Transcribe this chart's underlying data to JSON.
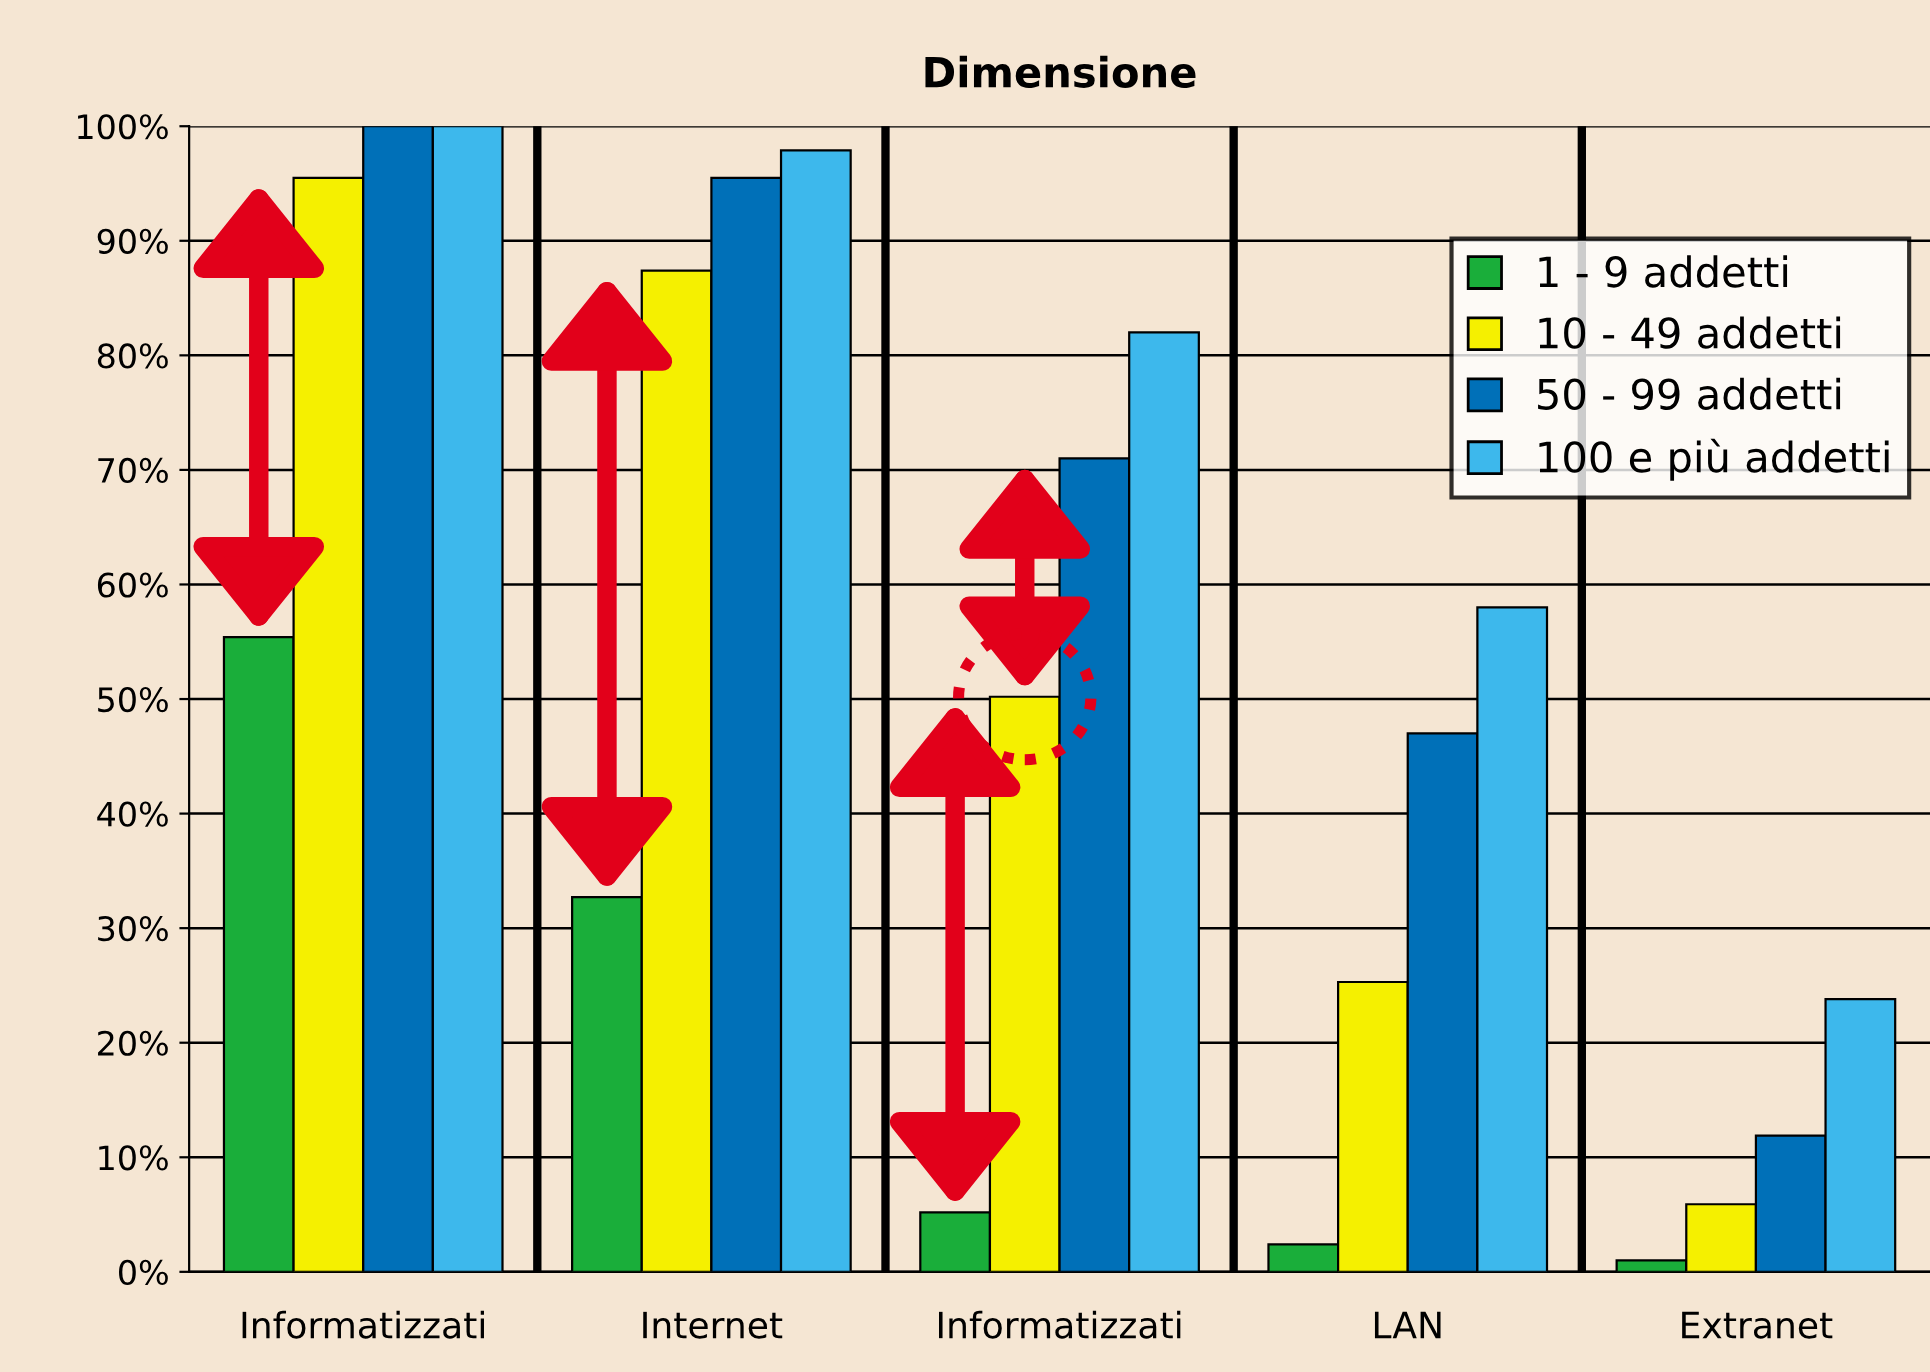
{
  "chart_data": {
    "type": "bar",
    "title": "Dimensione",
    "categories": [
      "Informatizzati",
      "Internet",
      "Informatizzati",
      "LAN",
      "Extranet"
    ],
    "series": [
      {
        "name": "1 - 9 addetti",
        "color": "#1aae3a",
        "values": [
          55.4,
          32.7,
          5.2,
          2.4,
          1.0
        ]
      },
      {
        "name": "10 - 49 addetti",
        "color": "#f5f000",
        "values": [
          95.5,
          87.4,
          50.2,
          25.3,
          5.9
        ]
      },
      {
        "name": "50 - 99 addetti",
        "color": "#0070b8",
        "values": [
          100,
          95.5,
          71.0,
          47.0,
          11.9
        ]
      },
      {
        "name": "100 e più addetti",
        "color": "#3db8ec",
        "values": [
          100,
          97.9,
          82.0,
          58.0,
          23.8
        ]
      }
    ],
    "ylim": [
      0,
      100
    ],
    "yticks": [
      {
        "value": 0,
        "label": "0%"
      },
      {
        "value": 10,
        "label": "10%"
      },
      {
        "value": 20,
        "label": "20%"
      },
      {
        "value": 30,
        "label": "30%"
      },
      {
        "value": 40,
        "label": "40%"
      },
      {
        "value": 50,
        "label": "50%"
      },
      {
        "value": 60,
        "label": "60%"
      },
      {
        "value": 70,
        "label": "70%"
      },
      {
        "value": 80,
        "label": "80%"
      },
      {
        "value": 90,
        "label": "90%"
      },
      {
        "value": 100,
        "label": "100%"
      }
    ],
    "grid": "y",
    "legend": "top right"
  }
}
